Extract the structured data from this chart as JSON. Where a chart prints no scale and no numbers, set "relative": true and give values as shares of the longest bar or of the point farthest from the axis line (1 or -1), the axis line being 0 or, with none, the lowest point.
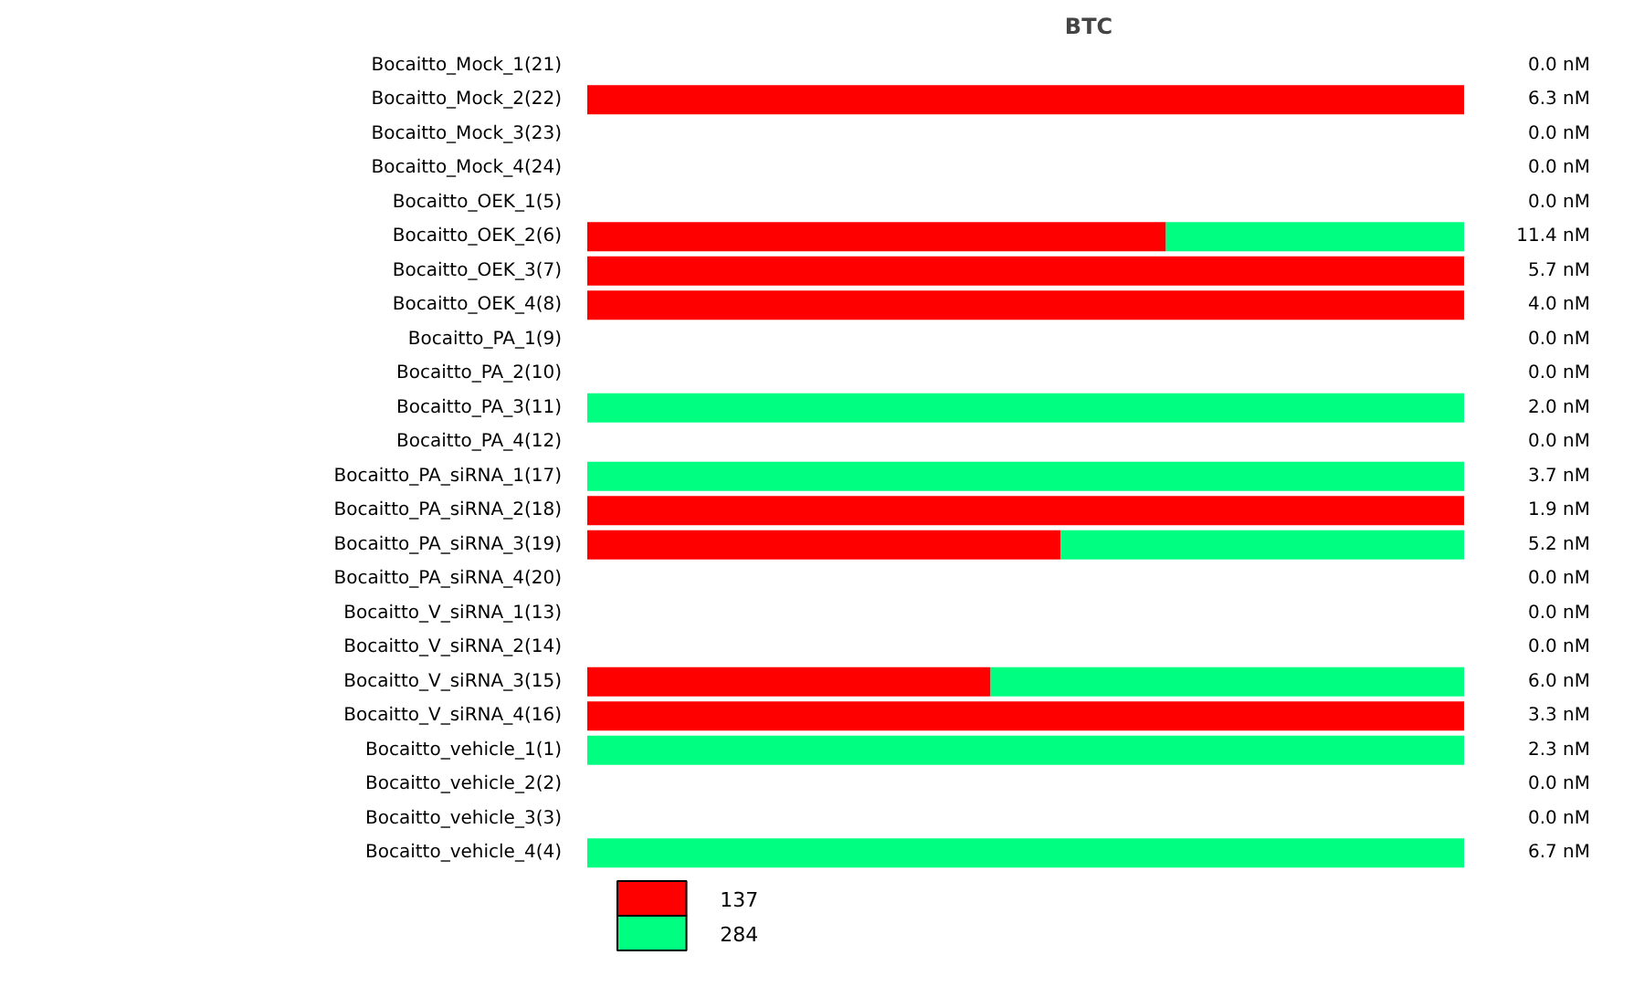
{
  "chart_data": {
    "type": "bar",
    "title": "BTC",
    "orientation": "horizontal",
    "stacked": true,
    "relative": true,
    "legend": "bottom left",
    "categories": [
      "Bocaitto_Mock_1(21)",
      "Bocaitto_Mock_2(22)",
      "Bocaitto_Mock_3(23)",
      "Bocaitto_Mock_4(24)",
      "Bocaitto_OEK_1(5)",
      "Bocaitto_OEK_2(6)",
      "Bocaitto_OEK_3(7)",
      "Bocaitto_OEK_4(8)",
      "Bocaitto_PA_1(9)",
      "Bocaitto_PA_2(10)",
      "Bocaitto_PA_3(11)",
      "Bocaitto_PA_4(12)",
      "Bocaitto_PA_siRNA_1(17)",
      "Bocaitto_PA_siRNA_2(18)",
      "Bocaitto_PA_siRNA_3(19)",
      "Bocaitto_PA_siRNA_4(20)",
      "Bocaitto_V_siRNA_1(13)",
      "Bocaitto_V_siRNA_2(14)",
      "Bocaitto_V_siRNA_3(15)",
      "Bocaitto_V_siRNA_4(16)",
      "Bocaitto_vehicle_1(1)",
      "Bocaitto_vehicle_2(2)",
      "Bocaitto_vehicle_3(3)",
      "Bocaitto_vehicle_4(4)"
    ],
    "series": [
      {
        "name": "137",
        "color": "#ff0000",
        "values": [
          0,
          1,
          0,
          0,
          0,
          0.66,
          1,
          1,
          0,
          0,
          0,
          0,
          0,
          1,
          0.54,
          0,
          0,
          0,
          0.46,
          1,
          0,
          0,
          0,
          0
        ]
      },
      {
        "name": "284",
        "color": "#00ff80",
        "values": [
          0,
          0,
          0,
          0,
          0,
          0.34,
          0,
          0,
          0,
          0,
          1,
          0,
          1,
          0,
          0.46,
          0,
          0,
          0,
          0.54,
          0,
          1,
          0,
          0,
          1
        ]
      }
    ],
    "annotations": [
      "0.0 nM",
      "6.3 nM",
      "0.0 nM",
      "0.0 nM",
      "0.0 nM",
      "11.4 nM",
      "5.7 nM",
      "4.0 nM",
      "0.0 nM",
      "0.0 nM",
      "2.0 nM",
      "0.0 nM",
      "3.7 nM",
      "1.9 nM",
      "5.2 nM",
      "0.0 nM",
      "0.0 nM",
      "0.0 nM",
      "6.0 nM",
      "3.3 nM",
      "2.3 nM",
      "0.0 nM",
      "0.0 nM",
      "6.7 nM"
    ]
  }
}
